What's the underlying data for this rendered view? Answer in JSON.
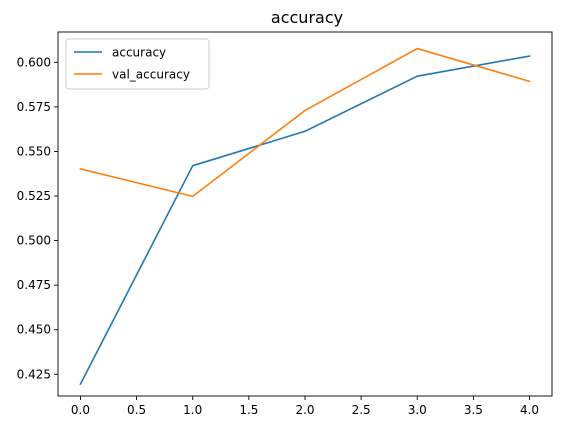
{
  "chart_data": {
    "type": "line",
    "title": "accuracy",
    "xlabel": "",
    "ylabel": "",
    "x": [
      0,
      1,
      2,
      3,
      4
    ],
    "xlim": [
      -0.2,
      4.2
    ],
    "ylim": [
      0.4128,
      0.617
    ],
    "x_ticks": [
      0.0,
      0.5,
      1.0,
      1.5,
      2.0,
      2.5,
      3.0,
      3.5,
      4.0
    ],
    "x_tick_labels": [
      "0.0",
      "0.5",
      "1.0",
      "1.5",
      "2.0",
      "2.5",
      "3.0",
      "3.5",
      "4.0"
    ],
    "y_ticks": [
      0.425,
      0.45,
      0.475,
      0.5,
      0.525,
      0.55,
      0.575,
      0.6
    ],
    "y_tick_labels": [
      "0.425",
      "0.450",
      "0.475",
      "0.500",
      "0.525",
      "0.550",
      "0.575",
      "0.600"
    ],
    "grid": false,
    "legend_position": "upper-left",
    "series": [
      {
        "name": "accuracy",
        "color": "#1f77b4",
        "values": [
          0.4195,
          0.542,
          0.5613,
          0.5922,
          0.6035
        ]
      },
      {
        "name": "val_accuracy",
        "color": "#ff7f0e",
        "values": [
          0.5402,
          0.5248,
          0.573,
          0.6077,
          0.5893
        ]
      }
    ]
  }
}
